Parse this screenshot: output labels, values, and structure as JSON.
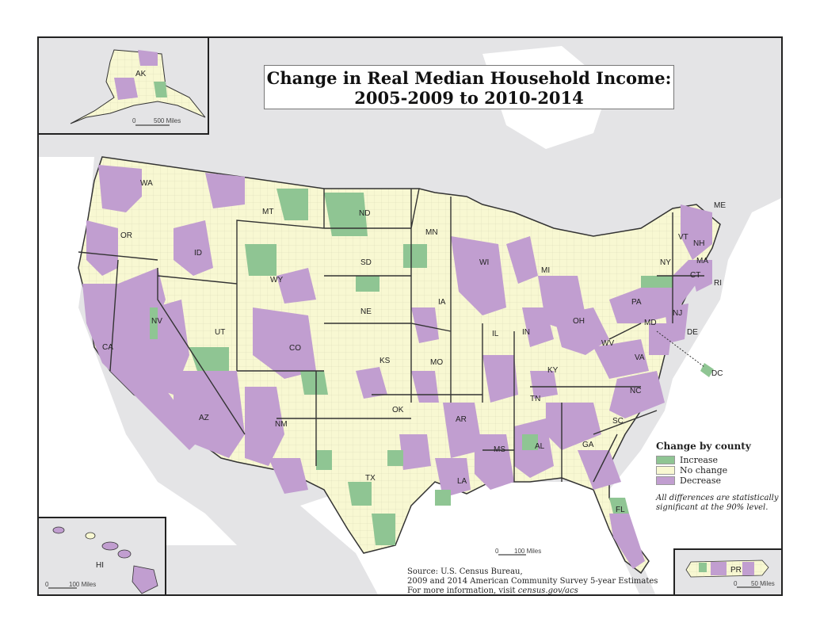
{
  "title": {
    "line1": "Change in Real Median Household Income:",
    "line2": "2005-2009 to 2010-2014"
  },
  "legend": {
    "title": "Change by county",
    "items": [
      {
        "label": "Increase",
        "color": "#8fc593"
      },
      {
        "label": "No change",
        "color": "#f8f8d2"
      },
      {
        "label": "Decrease",
        "color": "#c19ed0"
      }
    ],
    "note": "All differences are statistically significant at the 90% level."
  },
  "source": {
    "line1": "Source: U.S. Census Bureau,",
    "line2": "2009 and 2014 American Community Survey 5-year Estimates",
    "line3_prefix": "For more information, visit ",
    "url": "census.gov/acs"
  },
  "scales": {
    "main": "100 Miles",
    "alaska": "500 Miles",
    "hawaii": "100 Miles",
    "puerto_rico": "50 Miles",
    "zero": "0"
  },
  "insets": {
    "alaska": "AK",
    "hawaii": "HI",
    "puerto_rico": "PR"
  },
  "states": [
    "WA",
    "OR",
    "CA",
    "ID",
    "NV",
    "MT",
    "WY",
    "UT",
    "AZ",
    "CO",
    "NM",
    "ND",
    "SD",
    "NE",
    "KS",
    "OK",
    "TX",
    "MN",
    "IA",
    "MO",
    "AR",
    "LA",
    "WI",
    "IL",
    "MI",
    "IN",
    "OH",
    "KY",
    "TN",
    "MS",
    "AL",
    "GA",
    "FL",
    "SC",
    "NC",
    "VA",
    "WV",
    "PA",
    "NY",
    "VT",
    "NH",
    "ME",
    "MA",
    "CT",
    "RI",
    "NJ",
    "DE",
    "MD",
    "DC"
  ],
  "colors": {
    "increase": "#8fc593",
    "no_change": "#f8f8d2",
    "decrease": "#c19ed0",
    "water": "#ffffff",
    "land_outside": "#e4e4e6"
  }
}
